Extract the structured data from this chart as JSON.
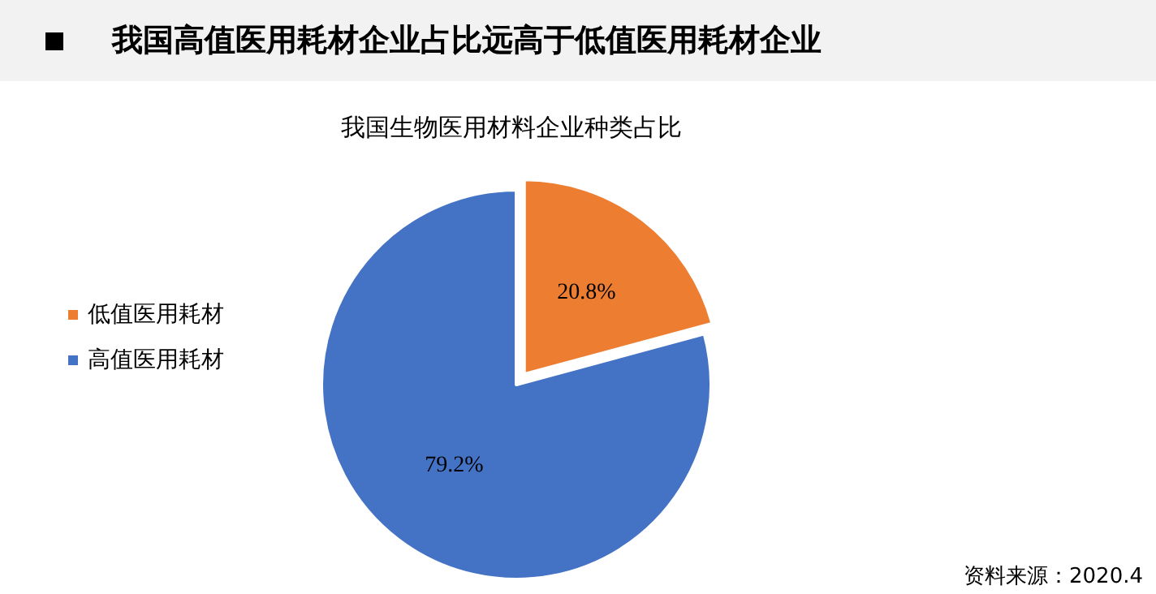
{
  "chart_data": {
    "type": "pie",
    "title": "我国高值医用耗材企业占比远高于低值医用耗材企业",
    "subtitle": "我国生物医用材料企业种类占比",
    "categories": [
      "低值医用耗材",
      "高值医用耗材"
    ],
    "values": [
      20.8,
      79.2
    ],
    "colors": [
      "#ed7d31",
      "#4472c4"
    ],
    "value_labels": [
      "20.8%",
      "79.2%"
    ],
    "legend": "left",
    "annotations": [
      "资料来源：2020.4"
    ]
  }
}
